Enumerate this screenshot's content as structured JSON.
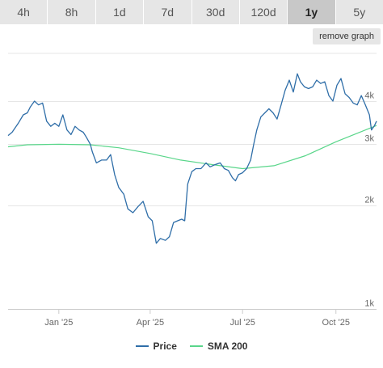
{
  "tabs": [
    {
      "label": "4h"
    },
    {
      "label": "8h"
    },
    {
      "label": "1d"
    },
    {
      "label": "7d"
    },
    {
      "label": "30d"
    },
    {
      "label": "120d"
    },
    {
      "label": "1y",
      "active": true
    },
    {
      "label": "5y"
    }
  ],
  "remove_graph_label": "remove graph",
  "colors": {
    "price": "#2f6ea8",
    "sma": "#59d68a",
    "grid": "#e6e6e6",
    "axis": "#cccccc"
  },
  "chart_data": {
    "type": "line",
    "title": "",
    "xlabel": "",
    "ylabel": "",
    "x_range": [
      "2024-11-12",
      "2025-11-10"
    ],
    "y_scale": "log",
    "ylim": [
      1000,
      5500
    ],
    "y_ticks": [
      {
        "value": 1000,
        "label": "1k"
      },
      {
        "value": 2000,
        "label": "2k"
      },
      {
        "value": 3000,
        "label": "3k"
      },
      {
        "value": 4000,
        "label": "4k"
      }
    ],
    "x_ticks": [
      {
        "date": "2025-01-01",
        "label": "Jan '25"
      },
      {
        "date": "2025-04-01",
        "label": "Apr '25"
      },
      {
        "date": "2025-07-01",
        "label": "Jul '25"
      },
      {
        "date": "2025-10-01",
        "label": "Oct '25"
      }
    ],
    "grid": true,
    "legend_position": "bottom",
    "series": [
      {
        "name": "Price",
        "points": [
          [
            "2024-11-12",
            3180
          ],
          [
            "2024-11-16",
            3250
          ],
          [
            "2024-11-22",
            3450
          ],
          [
            "2024-11-27",
            3650
          ],
          [
            "2024-12-01",
            3700
          ],
          [
            "2024-12-04",
            3850
          ],
          [
            "2024-12-08",
            4000
          ],
          [
            "2024-12-12",
            3900
          ],
          [
            "2024-12-16",
            3950
          ],
          [
            "2024-12-20",
            3500
          ],
          [
            "2024-12-24",
            3380
          ],
          [
            "2024-12-28",
            3450
          ],
          [
            "2025-01-01",
            3380
          ],
          [
            "2025-01-05",
            3650
          ],
          [
            "2025-01-09",
            3300
          ],
          [
            "2025-01-13",
            3200
          ],
          [
            "2025-01-17",
            3380
          ],
          [
            "2025-01-21",
            3300
          ],
          [
            "2025-01-25",
            3250
          ],
          [
            "2025-01-28",
            3150
          ],
          [
            "2025-02-01",
            3000
          ],
          [
            "2025-02-03",
            2850
          ],
          [
            "2025-02-07",
            2650
          ],
          [
            "2025-02-12",
            2700
          ],
          [
            "2025-02-17",
            2700
          ],
          [
            "2025-02-21",
            2800
          ],
          [
            "2025-02-25",
            2450
          ],
          [
            "2025-03-01",
            2250
          ],
          [
            "2025-03-06",
            2150
          ],
          [
            "2025-03-10",
            1950
          ],
          [
            "2025-03-15",
            1900
          ],
          [
            "2025-03-20",
            1980
          ],
          [
            "2025-03-25",
            2050
          ],
          [
            "2025-03-30",
            1850
          ],
          [
            "2025-04-03",
            1800
          ],
          [
            "2025-04-07",
            1550
          ],
          [
            "2025-04-11",
            1600
          ],
          [
            "2025-04-16",
            1580
          ],
          [
            "2025-04-20",
            1620
          ],
          [
            "2025-04-24",
            1780
          ],
          [
            "2025-04-28",
            1800
          ],
          [
            "2025-05-02",
            1820
          ],
          [
            "2025-05-05",
            1800
          ],
          [
            "2025-05-08",
            2300
          ],
          [
            "2025-05-12",
            2500
          ],
          [
            "2025-05-16",
            2550
          ],
          [
            "2025-05-21",
            2550
          ],
          [
            "2025-05-26",
            2650
          ],
          [
            "2025-05-30",
            2580
          ],
          [
            "2025-06-04",
            2620
          ],
          [
            "2025-06-09",
            2650
          ],
          [
            "2025-06-13",
            2550
          ],
          [
            "2025-06-17",
            2520
          ],
          [
            "2025-06-21",
            2400
          ],
          [
            "2025-06-24",
            2350
          ],
          [
            "2025-06-27",
            2450
          ],
          [
            "2025-07-01",
            2480
          ],
          [
            "2025-07-05",
            2550
          ],
          [
            "2025-07-09",
            2700
          ],
          [
            "2025-07-12",
            3000
          ],
          [
            "2025-07-15",
            3300
          ],
          [
            "2025-07-19",
            3600
          ],
          [
            "2025-07-23",
            3700
          ],
          [
            "2025-07-27",
            3800
          ],
          [
            "2025-07-31",
            3700
          ],
          [
            "2025-08-04",
            3550
          ],
          [
            "2025-08-08",
            3900
          ],
          [
            "2025-08-12",
            4300
          ],
          [
            "2025-08-16",
            4600
          ],
          [
            "2025-08-20",
            4250
          ],
          [
            "2025-08-24",
            4800
          ],
          [
            "2025-08-27",
            4550
          ],
          [
            "2025-08-31",
            4400
          ],
          [
            "2025-09-04",
            4350
          ],
          [
            "2025-09-08",
            4400
          ],
          [
            "2025-09-12",
            4600
          ],
          [
            "2025-09-16",
            4500
          ],
          [
            "2025-09-20",
            4550
          ],
          [
            "2025-09-24",
            4150
          ],
          [
            "2025-09-28",
            4000
          ],
          [
            "2025-10-02",
            4450
          ],
          [
            "2025-10-06",
            4650
          ],
          [
            "2025-10-10",
            4200
          ],
          [
            "2025-10-14",
            4100
          ],
          [
            "2025-10-18",
            3950
          ],
          [
            "2025-10-22",
            3900
          ],
          [
            "2025-10-26",
            4150
          ],
          [
            "2025-10-30",
            3900
          ],
          [
            "2025-11-03",
            3650
          ],
          [
            "2025-11-05",
            3300
          ],
          [
            "2025-11-08",
            3400
          ],
          [
            "2025-11-10",
            3500
          ]
        ]
      },
      {
        "name": "SMA 200",
        "points": [
          [
            "2024-11-12",
            2950
          ],
          [
            "2024-12-01",
            2990
          ],
          [
            "2025-01-01",
            3000
          ],
          [
            "2025-02-01",
            2990
          ],
          [
            "2025-03-01",
            2930
          ],
          [
            "2025-04-01",
            2820
          ],
          [
            "2025-05-01",
            2700
          ],
          [
            "2025-06-01",
            2620
          ],
          [
            "2025-07-01",
            2550
          ],
          [
            "2025-08-01",
            2600
          ],
          [
            "2025-09-01",
            2780
          ],
          [
            "2025-10-01",
            3050
          ],
          [
            "2025-11-10",
            3400
          ]
        ]
      }
    ]
  }
}
